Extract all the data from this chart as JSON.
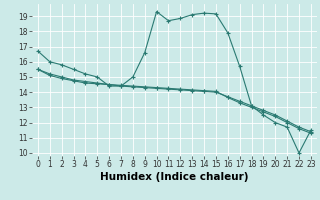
{
  "xlabel": "Humidex (Indice chaleur)",
  "bg_color": "#cceae8",
  "grid_color": "#ffffff",
  "line_color": "#2a7a72",
  "xlim": [
    -0.5,
    23.5
  ],
  "ylim": [
    9.8,
    19.8
  ],
  "yticks": [
    10,
    11,
    12,
    13,
    14,
    15,
    16,
    17,
    18,
    19
  ],
  "xticks": [
    0,
    1,
    2,
    3,
    4,
    5,
    6,
    7,
    8,
    9,
    10,
    11,
    12,
    13,
    14,
    15,
    16,
    17,
    18,
    19,
    20,
    21,
    22,
    23
  ],
  "line1_x": [
    0,
    1,
    2,
    3,
    4,
    5,
    6,
    7,
    8,
    9,
    10,
    11,
    12,
    13,
    14,
    15,
    16,
    17,
    18,
    19,
    20,
    21,
    22,
    23
  ],
  "line1_y": [
    16.7,
    16.0,
    15.8,
    15.5,
    15.2,
    15.0,
    14.4,
    14.4,
    15.0,
    16.6,
    19.3,
    18.7,
    18.85,
    19.1,
    19.2,
    19.15,
    17.9,
    15.7,
    13.1,
    12.5,
    12.0,
    11.7,
    10.0,
    11.5
  ],
  "line2_x": [
    0,
    1,
    2,
    3,
    4,
    5,
    6,
    7,
    8,
    9,
    10,
    11,
    12,
    13,
    14,
    15,
    16,
    17,
    18,
    19,
    20,
    21,
    22,
    23
  ],
  "line2_y": [
    15.5,
    15.2,
    15.0,
    14.8,
    14.7,
    14.6,
    14.5,
    14.4,
    14.35,
    14.3,
    14.25,
    14.2,
    14.15,
    14.1,
    14.05,
    14.0,
    13.7,
    13.4,
    13.1,
    12.8,
    12.5,
    12.1,
    11.7,
    11.4
  ],
  "line3_x": [
    0,
    1,
    2,
    3,
    4,
    5,
    6,
    7,
    8,
    9,
    10,
    11,
    12,
    13,
    14,
    15,
    16,
    17,
    18,
    19,
    20,
    21,
    22,
    23
  ],
  "line3_y": [
    15.5,
    15.1,
    14.9,
    14.75,
    14.6,
    14.55,
    14.5,
    14.45,
    14.4,
    14.35,
    14.3,
    14.25,
    14.2,
    14.15,
    14.1,
    14.05,
    13.65,
    13.3,
    13.0,
    12.7,
    12.4,
    12.0,
    11.6,
    11.3
  ],
  "tick_font_size": 5.5,
  "xlabel_font_size": 7.5
}
